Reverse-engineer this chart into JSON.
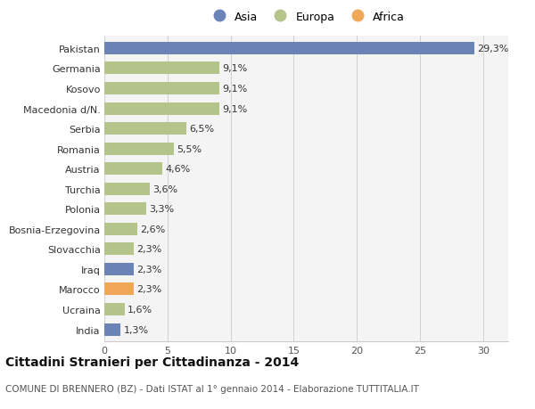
{
  "countries": [
    "Pakistan",
    "Germania",
    "Kosovo",
    "Macedonia d/N.",
    "Serbia",
    "Romania",
    "Austria",
    "Turchia",
    "Polonia",
    "Bosnia-Erzegovina",
    "Slovacchia",
    "Iraq",
    "Marocco",
    "Ucraina",
    "India"
  ],
  "values": [
    29.3,
    9.1,
    9.1,
    9.1,
    6.5,
    5.5,
    4.6,
    3.6,
    3.3,
    2.6,
    2.3,
    2.3,
    2.3,
    1.6,
    1.3
  ],
  "labels": [
    "29,3%",
    "9,1%",
    "9,1%",
    "9,1%",
    "6,5%",
    "5,5%",
    "4,6%",
    "3,6%",
    "3,3%",
    "2,6%",
    "2,3%",
    "2,3%",
    "2,3%",
    "1,6%",
    "1,3%"
  ],
  "continents": [
    "Asia",
    "Europa",
    "Europa",
    "Europa",
    "Europa",
    "Europa",
    "Europa",
    "Europa",
    "Europa",
    "Europa",
    "Europa",
    "Asia",
    "Africa",
    "Europa",
    "Asia"
  ],
  "colors": {
    "Asia": "#6b84b8",
    "Europa": "#b5c48a",
    "Africa": "#f0a858"
  },
  "title": "Cittadini Stranieri per Cittadinanza - 2014",
  "subtitle": "COMUNE DI BRENNERO (BZ) - Dati ISTAT al 1° gennaio 2014 - Elaborazione TUTTITALIA.IT",
  "xlim": [
    0,
    32
  ],
  "xticks": [
    0,
    5,
    10,
    15,
    20,
    25,
    30
  ],
  "background_color": "#f4f4f4",
  "plot_background": "#ffffff",
  "bar_height": 0.62,
  "label_fontsize": 8,
  "tick_fontsize": 8,
  "title_fontsize": 10,
  "subtitle_fontsize": 7.5,
  "legend_fontsize": 9
}
